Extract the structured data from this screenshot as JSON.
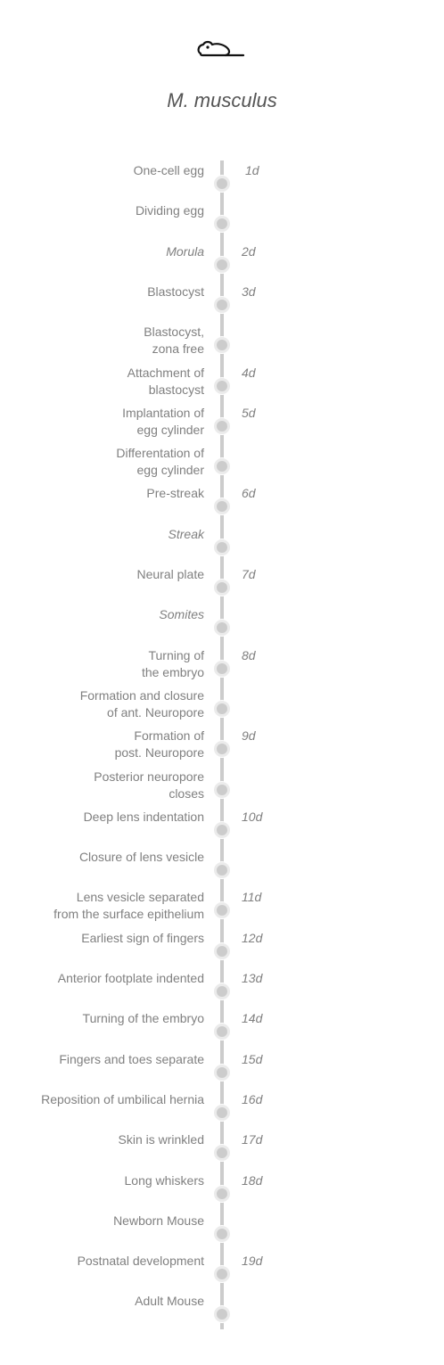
{
  "header": {
    "icon": "mouse-icon",
    "species": "M. musculus"
  },
  "colors": {
    "line": "#cccccc",
    "text": "#808080",
    "title": "#555555"
  },
  "stages": [
    {
      "label": "One-cell egg",
      "day": "1d",
      "italic": false
    },
    {
      "label": "Dividing egg",
      "day": "",
      "italic": false
    },
    {
      "label": "Morula",
      "day": "2d",
      "italic": true
    },
    {
      "label": "Blastocyst",
      "day": "3d",
      "italic": false
    },
    {
      "label": "Blastocyst,\nzona free",
      "day": "",
      "italic": false
    },
    {
      "label": "Attachment of \nblastocyst",
      "day": "4d",
      "italic": false
    },
    {
      "label": "Implantation of \negg cylinder",
      "day": "5d",
      "italic": false
    },
    {
      "label": "Differentation of\negg cylinder",
      "day": "",
      "italic": false
    },
    {
      "label": "Pre-streak",
      "day": "6d",
      "italic": false
    },
    {
      "label": "Streak",
      "day": "",
      "italic": true
    },
    {
      "label": "Neural plate",
      "day": "7d",
      "italic": false
    },
    {
      "label": "Somites",
      "day": "",
      "italic": true
    },
    {
      "label": "Turning of \nthe embryo",
      "day": "8d",
      "italic": false
    },
    {
      "label": "Formation and closure\nof ant. Neuropore",
      "day": "",
      "italic": false
    },
    {
      "label": "Formation of\npost. Neuropore",
      "day": "9d",
      "italic": false
    },
    {
      "label": "Posterior neuropore\ncloses",
      "day": "",
      "italic": false
    },
    {
      "label": "Deep lens indentation",
      "day": "10d",
      "italic": false
    },
    {
      "label": "Closure of lens vesicle",
      "day": "",
      "italic": false
    },
    {
      "label": "Lens vesicle separated \nfrom the surface epithelium",
      "day": "11d",
      "italic": false
    },
    {
      "label": "Earliest sign of fingers",
      "day": "12d",
      "italic": false
    },
    {
      "label": "Anterior footplate indented",
      "day": "13d",
      "italic": false
    },
    {
      "label": "Turning of the embryo",
      "day": "14d",
      "italic": false
    },
    {
      "label": "Fingers and toes separate",
      "day": "15d",
      "italic": false
    },
    {
      "label": "Reposition of umbilical hernia",
      "day": "16d",
      "italic": false
    },
    {
      "label": "Skin is wrinkled",
      "day": "17d",
      "italic": false
    },
    {
      "label": "Long whiskers",
      "day": "18d",
      "italic": false
    },
    {
      "label": "Newborn Mouse",
      "day": "",
      "italic": false
    },
    {
      "label": "Postnatal development",
      "day": "19d",
      "italic": false
    },
    {
      "label": "Adult Mouse",
      "day": "",
      "italic": false
    }
  ]
}
